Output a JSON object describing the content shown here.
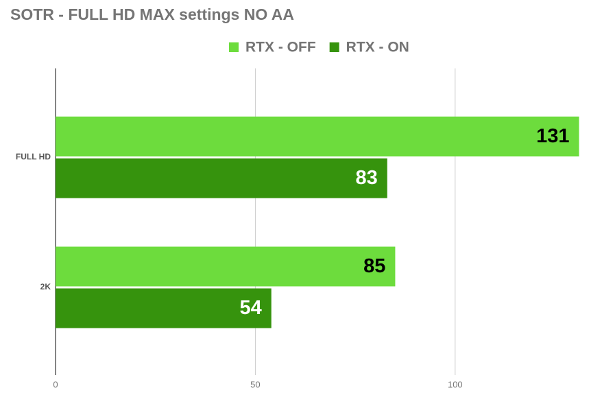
{
  "chart_data": {
    "type": "hbar",
    "title": "SOTR - FULL HD MAX settings NO AA",
    "categories": [
      "FULL HD",
      "2K"
    ],
    "series": [
      {
        "name": "RTX - OFF",
        "color": "#6ddc3d",
        "values": [
          131,
          85
        ]
      },
      {
        "name": "RTX - ON",
        "color": "#36930d",
        "values": [
          83,
          54
        ]
      }
    ],
    "xlim": [
      0,
      134
    ],
    "xticks": [
      0,
      50,
      100
    ],
    "grid": true,
    "legend": "top"
  }
}
